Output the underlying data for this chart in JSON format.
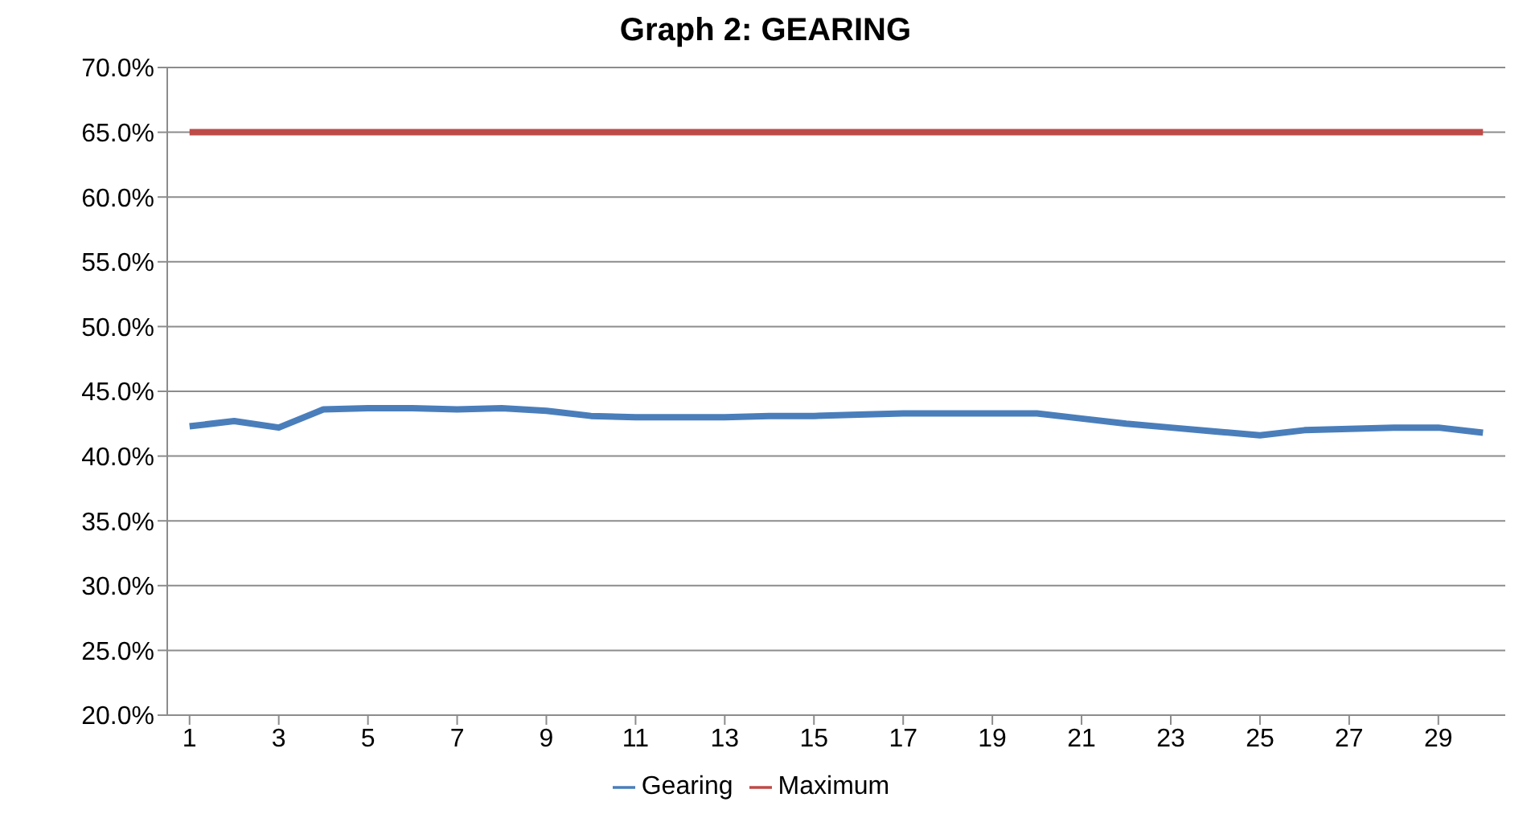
{
  "chart_data": {
    "type": "line",
    "title": "Graph 2: GEARING",
    "x": [
      1,
      2,
      3,
      4,
      5,
      6,
      7,
      8,
      9,
      10,
      11,
      12,
      13,
      14,
      15,
      16,
      17,
      18,
      19,
      20,
      21,
      22,
      23,
      24,
      25,
      26,
      27,
      28,
      29,
      30
    ],
    "series": [
      {
        "name": "Gearing",
        "color": "#4a7ebb",
        "values": [
          42.3,
          42.7,
          42.2,
          43.6,
          43.7,
          43.7,
          43.6,
          43.7,
          43.5,
          43.1,
          43.0,
          43.0,
          43.0,
          43.1,
          43.1,
          43.2,
          43.3,
          43.3,
          43.3,
          43.3,
          42.9,
          42.5,
          42.2,
          41.9,
          41.6,
          42.0,
          42.1,
          42.2,
          42.2,
          41.8
        ]
      },
      {
        "name": "Maximum",
        "color": "#be4b48",
        "values": [
          65,
          65,
          65,
          65,
          65,
          65,
          65,
          65,
          65,
          65,
          65,
          65,
          65,
          65,
          65,
          65,
          65,
          65,
          65,
          65,
          65,
          65,
          65,
          65,
          65,
          65,
          65,
          65,
          65,
          65
        ]
      }
    ],
    "xlim": [
      0.5,
      30.5
    ],
    "xticks": [
      1,
      3,
      5,
      7,
      9,
      11,
      13,
      15,
      17,
      19,
      21,
      23,
      25,
      27,
      29
    ],
    "ylim": [
      20,
      70
    ],
    "yticks": [
      {
        "value": 20,
        "label": "20.0%"
      },
      {
        "value": 25,
        "label": "25.0%"
      },
      {
        "value": 30,
        "label": "30.0%"
      },
      {
        "value": 35,
        "label": "35.0%"
      },
      {
        "value": 40,
        "label": "40.0%"
      },
      {
        "value": 45,
        "label": "45.0%"
      },
      {
        "value": 50,
        "label": "50.0%"
      },
      {
        "value": 55,
        "label": "55.0%"
      },
      {
        "value": 60,
        "label": "60.0%"
      },
      {
        "value": 65,
        "label": "65.0%"
      },
      {
        "value": 70,
        "label": "70.0%"
      }
    ],
    "grid": "y",
    "legend": "bottom",
    "marker": "none",
    "line_style": "solid"
  }
}
